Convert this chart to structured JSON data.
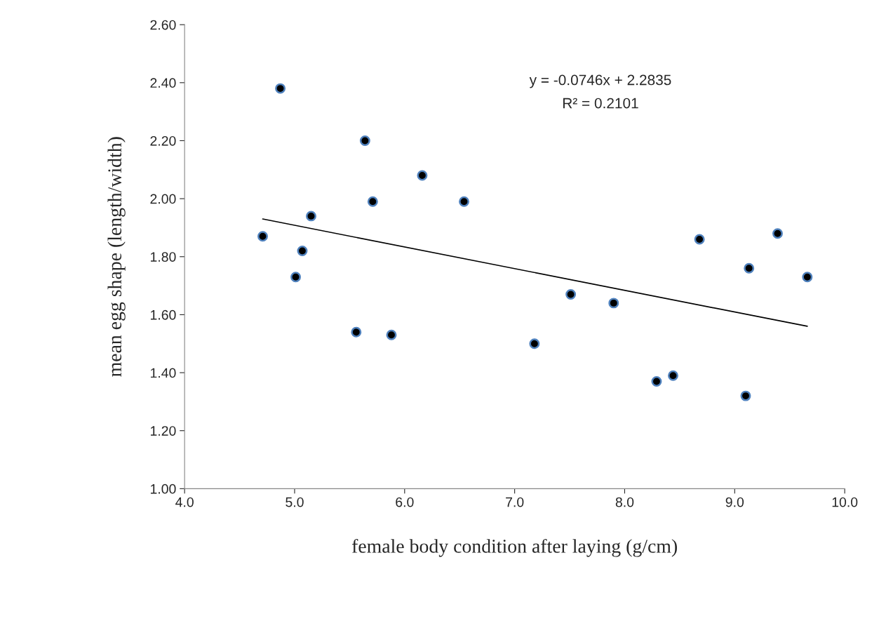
{
  "chart_data": {
    "type": "scatter",
    "xlabel": "female body condition after laying (g/cm)",
    "ylabel": "mean egg shape (length/width)",
    "series": [
      {
        "color": "#000000",
        "marker": "circle",
        "x": [
          4.71,
          4.87,
          5.01,
          5.07,
          5.15,
          5.56,
          5.64,
          5.71,
          5.88,
          6.16,
          6.54,
          7.18,
          7.51,
          7.9,
          8.29,
          8.44,
          8.68,
          9.1,
          9.13,
          9.39,
          9.66
        ],
        "values": [
          1.87,
          2.38,
          1.73,
          1.82,
          1.94,
          1.54,
          2.2,
          1.99,
          1.53,
          2.08,
          1.99,
          1.5,
          1.67,
          1.64,
          1.37,
          1.39,
          1.86,
          1.32,
          1.76,
          1.88,
          1.73
        ]
      },
      {
        "type": "line",
        "color": "#000000",
        "marker": "none",
        "line_style": "solid",
        "x": [
          4.71,
          9.66
        ],
        "values": [
          1.93,
          1.56
        ]
      }
    ],
    "annotations": [
      "y = -0.0746x + 2.2835",
      "R² = 0.2101"
    ],
    "xlim": [
      4.0,
      10.0
    ],
    "xticks": [
      {
        "value": 4.0,
        "label": "4.0"
      },
      {
        "value": 5.0,
        "label": "5.0"
      },
      {
        "value": 6.0,
        "label": "6.0"
      },
      {
        "value": 7.0,
        "label": "7.0"
      },
      {
        "value": 8.0,
        "label": "8.0"
      },
      {
        "value": 9.0,
        "label": "9.0"
      },
      {
        "value": 10.0,
        "label": "10.0"
      }
    ],
    "ylim": [
      1.0,
      2.6
    ],
    "yticks": [
      {
        "value": 1.0,
        "label": "1.00"
      },
      {
        "value": 1.2,
        "label": "1.20"
      },
      {
        "value": 1.4,
        "label": "1.40"
      },
      {
        "value": 1.6,
        "label": "1.60"
      },
      {
        "value": 1.8,
        "label": "1.80"
      },
      {
        "value": 2.0,
        "label": "2.00"
      },
      {
        "value": 2.2,
        "label": "2.20"
      },
      {
        "value": 2.4,
        "label": "2.40"
      },
      {
        "value": 2.6,
        "label": "2.60"
      }
    ],
    "grid": false,
    "legend": false
  }
}
